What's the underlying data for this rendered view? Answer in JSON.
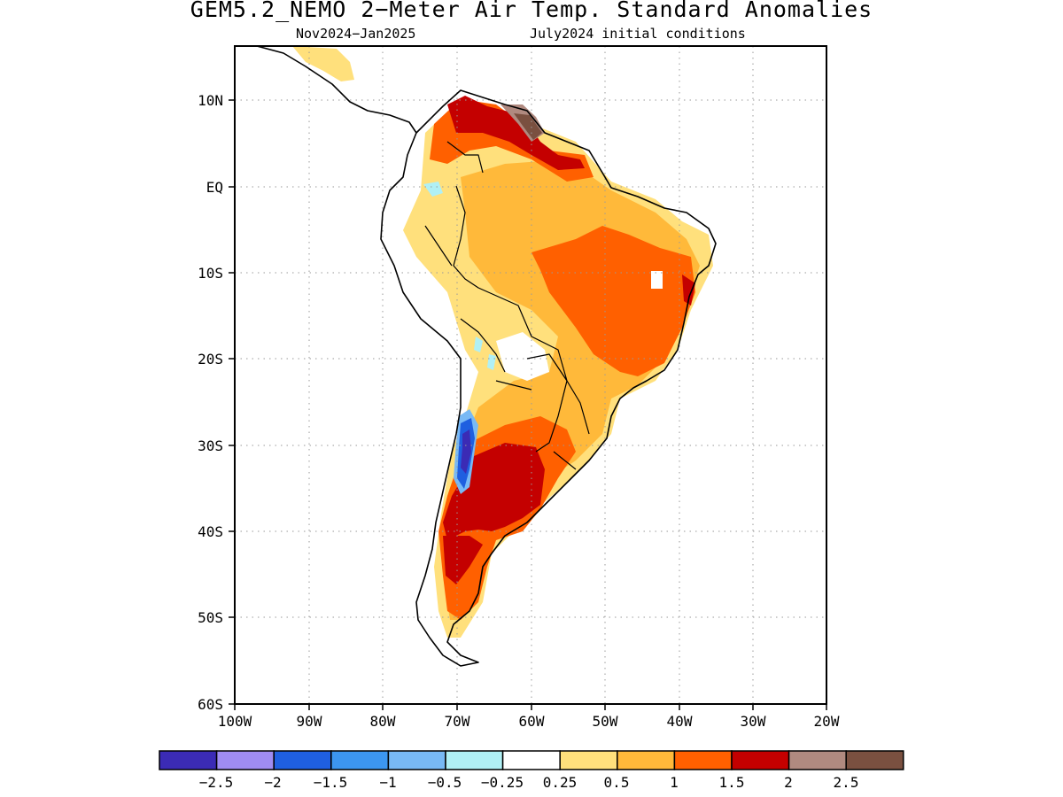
{
  "title": "GEM5.2_NEMO 2−Meter Air Temp. Standard Anomalies",
  "subtitle_left": "Nov2024−Jan2025",
  "subtitle_right": "July2024 initial conditions",
  "map": {
    "lat_labels": [
      "10N",
      "EQ",
      "10S",
      "20S",
      "30S",
      "40S",
      "50S",
      "60S"
    ],
    "lon_labels": [
      "100W",
      "90W",
      "80W",
      "70W",
      "60W",
      "50W",
      "40W",
      "30W",
      "20W"
    ]
  },
  "colorbar": {
    "colors": [
      "#3b2bb5",
      "#9f8cf2",
      "#1f5fe0",
      "#3c96f0",
      "#78b9f5",
      "#b0f0f5",
      "#ffffff",
      "#ffe07c",
      "#ffb93a",
      "#ff6000",
      "#c40000",
      "#b08a80",
      "#7a5040"
    ],
    "labels": [
      "−2.5",
      "−2",
      "−1.5",
      "−1",
      "−0.5",
      "−0.25",
      "0.25",
      "0.5",
      "1",
      "1.5",
      "2",
      "2.5"
    ]
  }
}
